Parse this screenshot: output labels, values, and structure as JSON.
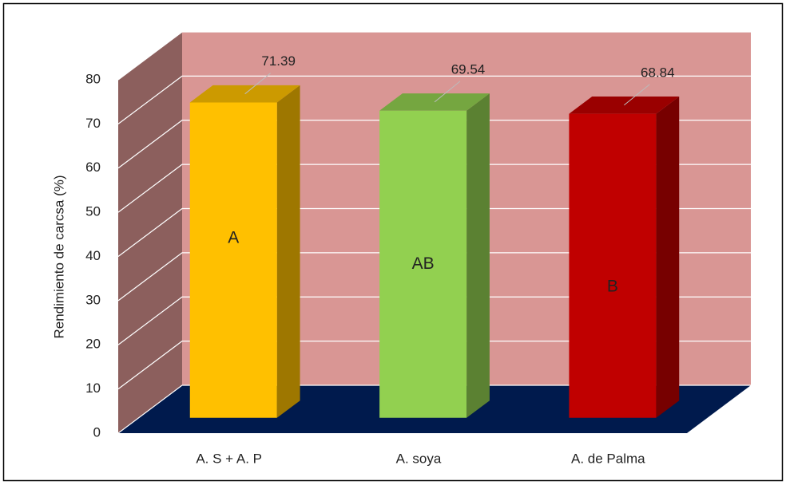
{
  "chart_data": {
    "type": "bar3d",
    "y_label": "Rendimiento de carcsa (%)",
    "categories": [
      "A. S + A. P",
      "A. soya",
      "A. de Palma"
    ],
    "values": [
      71.39,
      69.54,
      68.84
    ],
    "annotations": [
      "A",
      "AB",
      "B"
    ],
    "colors": [
      "#ffc000",
      "#92d050",
      "#c00000"
    ],
    "ylim": [
      0,
      80
    ],
    "yticks": [
      0,
      10,
      20,
      30,
      40,
      50,
      60,
      70,
      80
    ],
    "grid": true
  }
}
